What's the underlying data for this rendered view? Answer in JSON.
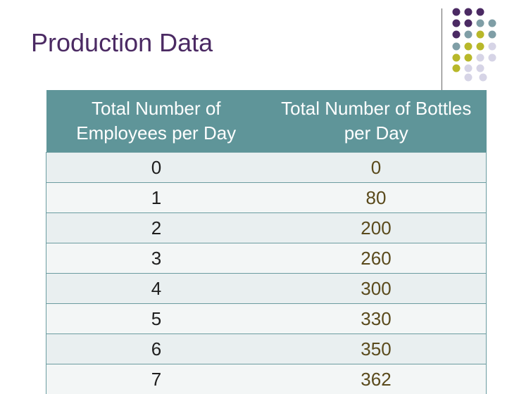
{
  "header": {
    "title": "Production Data"
  },
  "table": {
    "columns": [
      "Total Number of Employees per Day",
      "Total Number of Bottles per Day"
    ],
    "rows": [
      [
        "0",
        "0"
      ],
      [
        "1",
        "80"
      ],
      [
        "2",
        "200"
      ],
      [
        "3",
        "260"
      ],
      [
        "4",
        "300"
      ],
      [
        "5",
        "330"
      ],
      [
        "6",
        "350"
      ],
      [
        "7",
        "362"
      ]
    ]
  }
}
